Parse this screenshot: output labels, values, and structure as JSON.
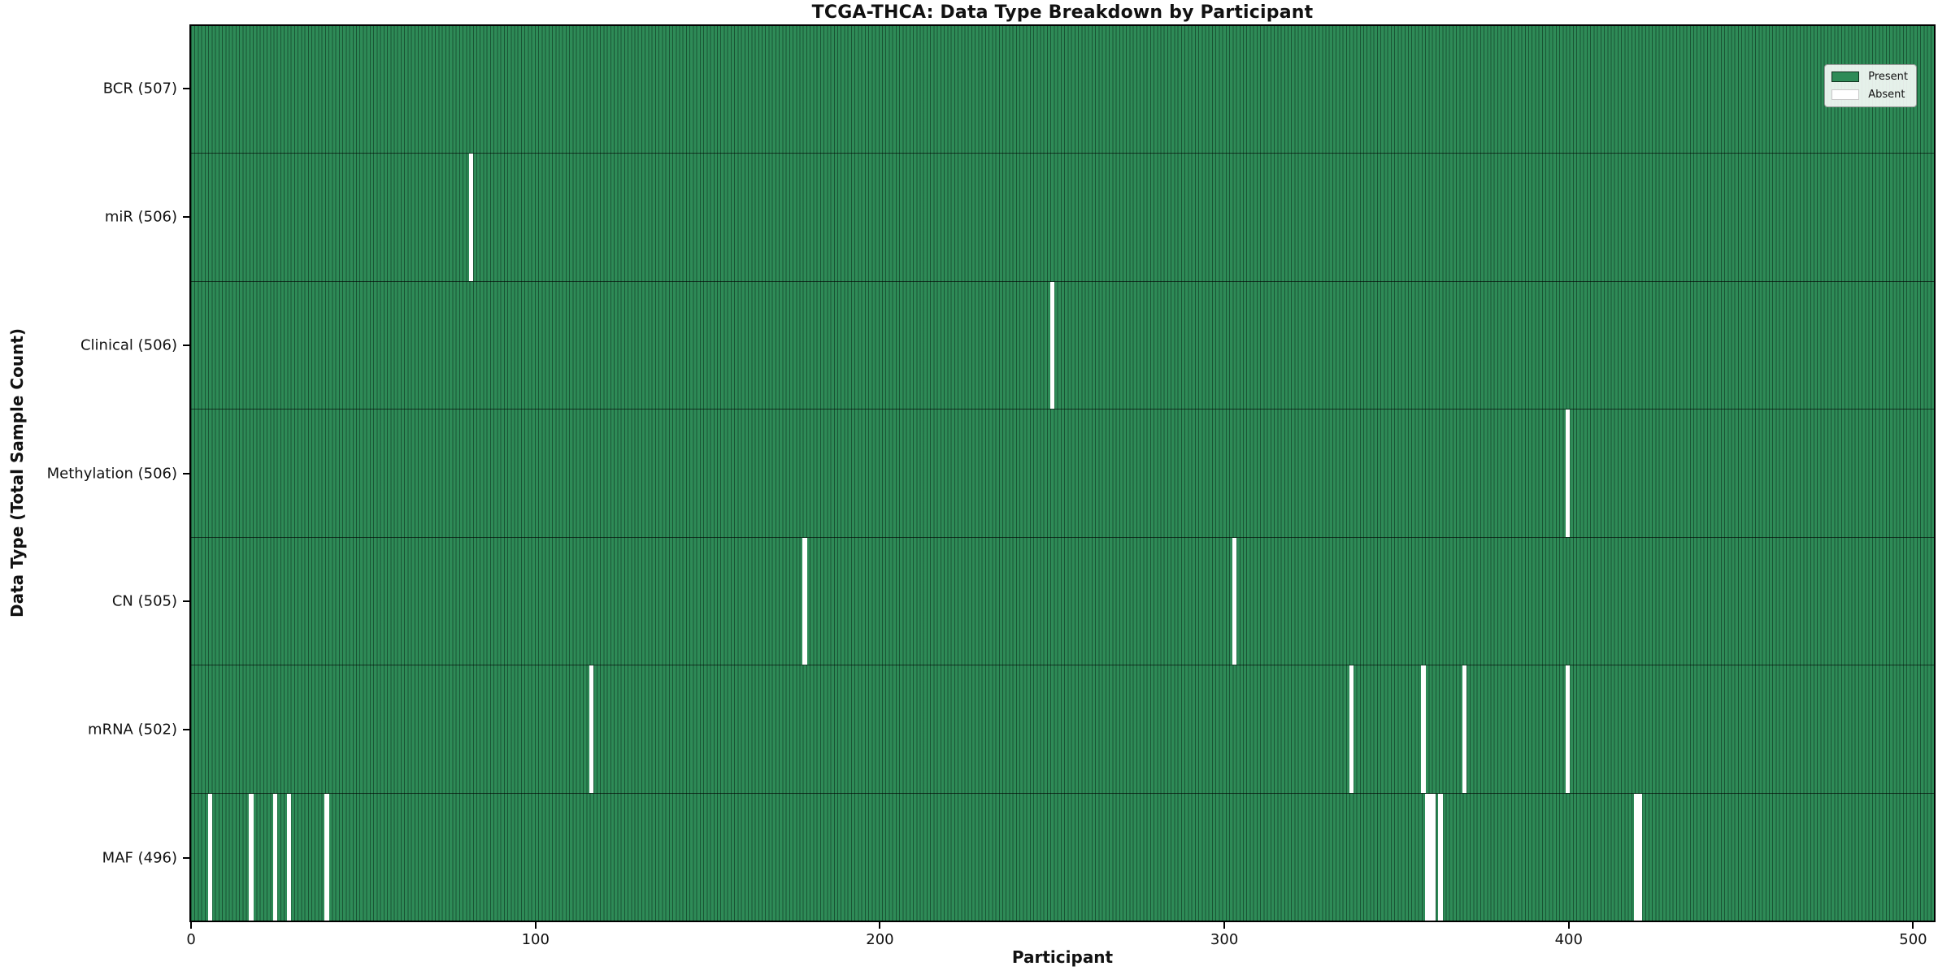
{
  "chart_data": {
    "type": "heatmap",
    "title": "TCGA-THCA: Data Type Breakdown by Participant",
    "xlabel": "Participant",
    "ylabel": "Data Type (Total Sample Count)",
    "legend_position": "upper right",
    "legend": [
      {
        "label": "Present",
        "color": "#2e8b57"
      },
      {
        "label": "Absent",
        "color": "#ffffff"
      }
    ],
    "colors": {
      "present_fill": "#2e8b57",
      "absent_fill": "#ffffff",
      "bar_edge": "rgba(8,38,24,0.55)",
      "row_divider": "#000000",
      "axis": "#000000"
    },
    "total_participants": 507,
    "x_axis": {
      "ticks": [
        0,
        100,
        200,
        300,
        400,
        500
      ],
      "min": -0.5,
      "max": 506.5,
      "grid": false
    },
    "rows": [
      {
        "data_type": "BCR",
        "count": 507,
        "label": "BCR (507)",
        "absent_participants": []
      },
      {
        "data_type": "miR",
        "count": 506,
        "label": "miR (506)",
        "absent_participants": [
          81
        ]
      },
      {
        "data_type": "Clinical",
        "count": 506,
        "label": "Clinical (506)",
        "absent_participants": [
          250
        ]
      },
      {
        "data_type": "Methylation",
        "count": 506,
        "label": "Methylation (506)",
        "absent_participants": [
          400
        ]
      },
      {
        "data_type": "CN",
        "count": 505,
        "label": "CN (505)",
        "absent_participants": [
          178,
          303
        ]
      },
      {
        "data_type": "mRNA",
        "count": 502,
        "label": "mRNA (502)",
        "absent_participants": [
          116,
          337,
          358,
          370,
          400
        ]
      },
      {
        "data_type": "MAF",
        "count": 496,
        "label": "MAF (496)",
        "absent_participants": [
          5,
          17,
          24,
          28,
          39,
          359,
          360,
          361,
          363,
          420,
          421
        ]
      }
    ]
  }
}
